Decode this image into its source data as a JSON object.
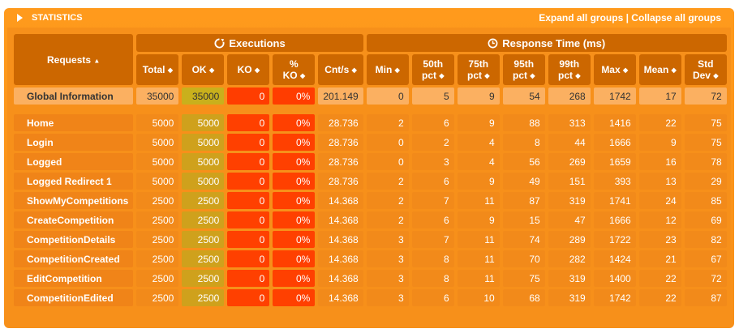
{
  "header": {
    "title": "STATISTICS",
    "expand_all": "Expand all groups",
    "separator": "|",
    "collapse_all": "Collapse all groups"
  },
  "columns": {
    "requests": "Requests",
    "executions": "Executions",
    "response_time": "Response Time (ms)",
    "total": "Total",
    "ok": "OK",
    "ko": "KO",
    "ko_pct_1": "%",
    "ko_pct_2": "KO",
    "cnts": "Cnt/s",
    "min": "Min",
    "p50_1": "50th",
    "p50_2": "pct",
    "p75_1": "75th",
    "p75_2": "pct",
    "p95_1": "95th",
    "p95_2": "pct",
    "p99_1": "99th",
    "p99_2": "pct",
    "max": "Max",
    "mean": "Mean",
    "std_1": "Std",
    "std_2": "Dev"
  },
  "global": {
    "name": "Global Information",
    "total": "35000",
    "ok": "35000",
    "ko": "0",
    "kopct": "0%",
    "cnts": "201.149",
    "min": "0",
    "p50": "5",
    "p75": "9",
    "p95": "54",
    "p99": "268",
    "max": "1742",
    "mean": "17",
    "std": "72"
  },
  "rows": [
    {
      "name": "Home",
      "total": "5000",
      "ok": "5000",
      "ko": "0",
      "kopct": "0%",
      "cnts": "28.736",
      "min": "2",
      "p50": "6",
      "p75": "9",
      "p95": "88",
      "p99": "313",
      "max": "1416",
      "mean": "22",
      "std": "75"
    },
    {
      "name": "Login",
      "total": "5000",
      "ok": "5000",
      "ko": "0",
      "kopct": "0%",
      "cnts": "28.736",
      "min": "0",
      "p50": "2",
      "p75": "4",
      "p95": "8",
      "p99": "44",
      "max": "1666",
      "mean": "9",
      "std": "75"
    },
    {
      "name": "Logged",
      "total": "5000",
      "ok": "5000",
      "ko": "0",
      "kopct": "0%",
      "cnts": "28.736",
      "min": "0",
      "p50": "3",
      "p75": "4",
      "p95": "56",
      "p99": "269",
      "max": "1659",
      "mean": "16",
      "std": "78"
    },
    {
      "name": "Logged Redirect 1",
      "total": "5000",
      "ok": "5000",
      "ko": "0",
      "kopct": "0%",
      "cnts": "28.736",
      "min": "2",
      "p50": "6",
      "p75": "9",
      "p95": "49",
      "p99": "151",
      "max": "393",
      "mean": "13",
      "std": "29"
    },
    {
      "name": "ShowMyCompetitions",
      "total": "2500",
      "ok": "2500",
      "ko": "0",
      "kopct": "0%",
      "cnts": "14.368",
      "min": "2",
      "p50": "7",
      "p75": "11",
      "p95": "87",
      "p99": "319",
      "max": "1741",
      "mean": "24",
      "std": "85"
    },
    {
      "name": "CreateCompetition",
      "total": "2500",
      "ok": "2500",
      "ko": "0",
      "kopct": "0%",
      "cnts": "14.368",
      "min": "2",
      "p50": "6",
      "p75": "9",
      "p95": "15",
      "p99": "47",
      "max": "1666",
      "mean": "12",
      "std": "69"
    },
    {
      "name": "CompetitionDetails",
      "total": "2500",
      "ok": "2500",
      "ko": "0",
      "kopct": "0%",
      "cnts": "14.368",
      "min": "3",
      "p50": "7",
      "p75": "11",
      "p95": "74",
      "p99": "289",
      "max": "1722",
      "mean": "23",
      "std": "82"
    },
    {
      "name": "CompetitionCreated",
      "total": "2500",
      "ok": "2500",
      "ko": "0",
      "kopct": "0%",
      "cnts": "14.368",
      "min": "3",
      "p50": "8",
      "p75": "11",
      "p95": "70",
      "p99": "282",
      "max": "1424",
      "mean": "21",
      "std": "67"
    },
    {
      "name": "EditCompetition",
      "total": "2500",
      "ok": "2500",
      "ko": "0",
      "kopct": "0%",
      "cnts": "14.368",
      "min": "3",
      "p50": "8",
      "p75": "11",
      "p95": "75",
      "p99": "319",
      "max": "1400",
      "mean": "22",
      "std": "72"
    },
    {
      "name": "CompetitionEdited",
      "total": "2500",
      "ok": "2500",
      "ko": "0",
      "kopct": "0%",
      "cnts": "14.368",
      "min": "3",
      "p50": "6",
      "p75": "10",
      "p95": "68",
      "p99": "319",
      "max": "1742",
      "mean": "22",
      "std": "87"
    }
  ],
  "colors": {
    "panel": "#f7901a",
    "header_cell": "#cc6700",
    "ok_cell": "#cfa11c",
    "ko_cell": "#ff4000"
  }
}
